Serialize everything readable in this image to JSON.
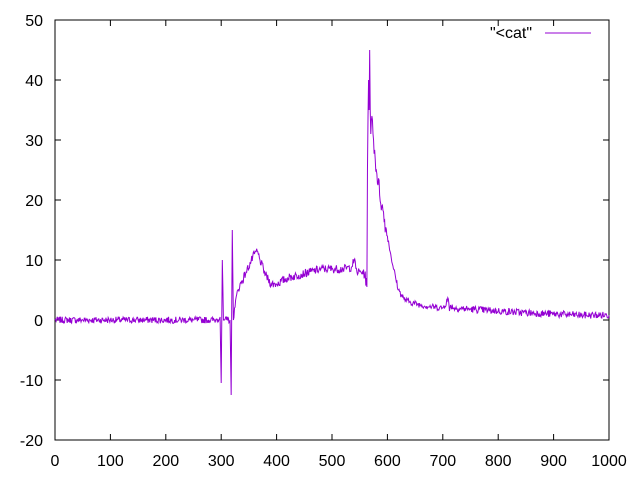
{
  "chart_data": {
    "type": "line",
    "title": "",
    "xlabel": "",
    "ylabel": "",
    "xlim": [
      0,
      1000
    ],
    "ylim": [
      -20,
      50
    ],
    "x_ticks": [
      0,
      100,
      200,
      300,
      400,
      500,
      600,
      700,
      800,
      900,
      1000
    ],
    "y_ticks": [
      -20,
      -10,
      0,
      10,
      20,
      30,
      40,
      50
    ],
    "x_tick_labels": [
      "0",
      "100",
      "200",
      "300",
      "400",
      "500",
      "600",
      "700",
      "800",
      "900",
      "1000"
    ],
    "y_tick_labels": [
      "-20",
      "-10",
      "0",
      "10",
      "20",
      "30",
      "40",
      "50"
    ],
    "grid": false,
    "legend": {
      "position": "top-right"
    },
    "colors": {
      "series": "#9400d3",
      "axis": "#000000"
    },
    "series": [
      {
        "name": "\"<cat\"",
        "x": [
          0,
          50,
          100,
          150,
          200,
          250,
          290,
          298,
          300,
          302,
          304,
          306,
          310,
          316,
          318,
          320,
          322,
          324,
          330,
          345,
          360,
          365,
          370,
          380,
          390,
          400,
          420,
          440,
          460,
          480,
          500,
          520,
          535,
          540,
          545,
          555,
          562,
          563,
          564,
          566,
          567,
          568,
          569,
          570,
          572,
          575,
          580,
          590,
          600,
          610,
          620,
          630,
          640,
          660,
          680,
          700,
          710,
          712,
          714,
          720,
          750,
          800,
          850,
          900,
          950,
          1000
        ],
        "y": [
          0,
          0,
          0,
          0,
          0,
          0,
          0,
          0.5,
          -10.5,
          10,
          0,
          0,
          0,
          0,
          -12.5,
          15,
          0,
          2,
          5,
          8,
          11,
          11.5,
          10,
          7.5,
          6,
          6,
          7,
          7.5,
          8,
          8.5,
          8.5,
          8.5,
          8.8,
          10,
          8,
          8,
          7,
          5.5,
          25,
          40,
          35,
          45,
          35,
          31,
          34,
          30,
          25,
          19,
          14,
          9,
          5,
          3.5,
          3,
          2.5,
          2.2,
          2,
          3.5,
          1.5,
          2.5,
          2,
          1.8,
          1.5,
          1.2,
          1,
          0.8,
          0.8
        ]
      }
    ]
  }
}
